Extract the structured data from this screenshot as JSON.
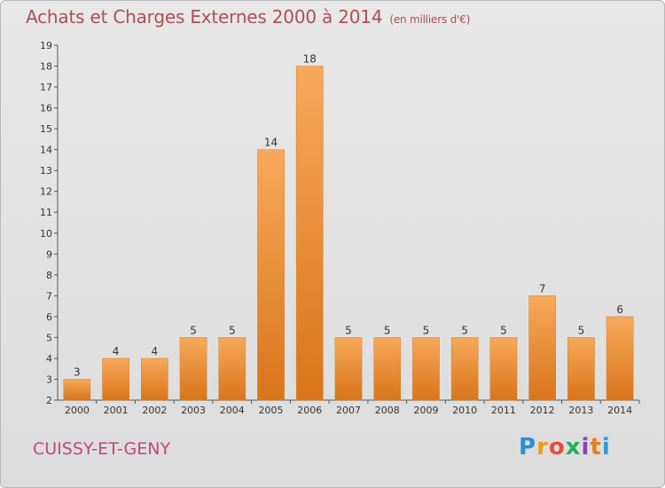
{
  "header": {
    "title": "Achats et Charges Externes 2000 à 2014",
    "unit": "(en milliers d'€)"
  },
  "footer": {
    "commune": "CUISSY-ET-GENY",
    "logo_letters": [
      "P",
      "r",
      "o",
      "x",
      "i",
      "t",
      "i"
    ],
    "logo_colors": [
      "#2a8fd6",
      "#f39c12",
      "#e74c3c",
      "#27ae60",
      "#8e44ad",
      "#e67e22",
      "#3498db"
    ]
  },
  "chart_data": {
    "type": "bar",
    "categories": [
      "2000",
      "2001",
      "2002",
      "2003",
      "2004",
      "2005",
      "2006",
      "2007",
      "2008",
      "2009",
      "2010",
      "2011",
      "2012",
      "2013",
      "2014"
    ],
    "values": [
      3,
      4,
      4,
      5,
      5,
      14,
      18,
      5,
      5,
      5,
      5,
      5,
      7,
      5,
      6
    ],
    "ylim": [
      2,
      19
    ],
    "yticks": [
      2,
      3,
      4,
      5,
      6,
      7,
      8,
      9,
      10,
      11,
      12,
      13,
      14,
      15,
      16,
      17,
      18,
      19
    ],
    "bar_color": "#f0983a",
    "grid": false,
    "legend": false
  }
}
